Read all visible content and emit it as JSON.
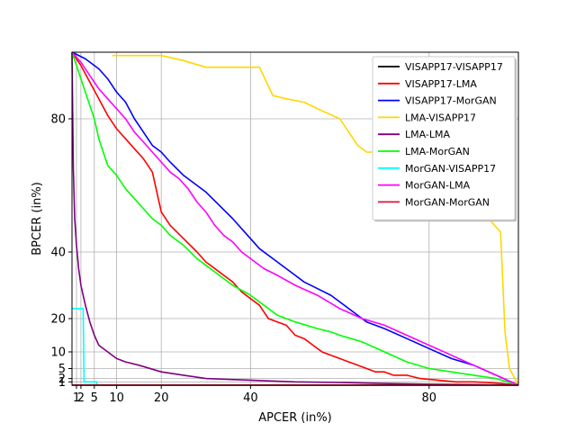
{
  "chart_data": {
    "type": "line",
    "title": "",
    "xlabel": "APCER (in%)",
    "ylabel": "BPCER (in%)",
    "xlim": [
      0,
      100
    ],
    "ylim": [
      0,
      100
    ],
    "xticks": [
      1,
      2,
      5,
      10,
      20,
      40,
      80
    ],
    "yticks": [
      1,
      2,
      5,
      10,
      20,
      40,
      80
    ],
    "grid": true,
    "legend_position": "top-right",
    "series": [
      {
        "name": "VISAPP17-VISAPP17",
        "color": "#000000",
        "x": [
          0,
          100
        ],
        "y": [
          0,
          0
        ]
      },
      {
        "name": "VISAPP17-LMA",
        "color": "#ff0000",
        "x": [
          0,
          2,
          4,
          6,
          8,
          10,
          12,
          14,
          16,
          18,
          20,
          22,
          25,
          28,
          30,
          33,
          36,
          38,
          40,
          42,
          44,
          46,
          48,
          50,
          52,
          54,
          56,
          58,
          60,
          62,
          64,
          66,
          68,
          70,
          72,
          75,
          78,
          82,
          86,
          90,
          93,
          96,
          98,
          100
        ],
        "y": [
          100,
          96,
          91,
          86,
          81,
          77,
          74,
          71,
          68,
          64,
          52,
          48,
          44,
          40,
          37,
          34,
          31,
          28,
          26,
          24,
          20,
          19,
          18,
          15,
          14,
          12,
          10,
          9,
          8,
          7,
          6,
          5,
          4,
          4,
          3,
          3,
          2,
          1.5,
          1,
          1,
          0.8,
          0.5,
          0.3,
          0
        ]
      },
      {
        "name": "VISAPP17-MorGAN",
        "color": "#0000ff",
        "x": [
          0,
          3,
          6,
          8,
          10,
          12,
          14,
          16,
          18,
          20,
          22,
          25,
          28,
          30,
          33,
          36,
          40,
          42,
          45,
          48,
          50,
          52,
          55,
          58,
          60,
          63,
          66,
          70,
          75,
          80,
          85,
          90,
          95,
          100
        ],
        "y": [
          100,
          98,
          95,
          92,
          88,
          85,
          80,
          76,
          72,
          70,
          67,
          63,
          60,
          58,
          54,
          50,
          44,
          41,
          38,
          35,
          33,
          31,
          29,
          27,
          25,
          22,
          19,
          17,
          14,
          11,
          8,
          6,
          3,
          0
        ]
      },
      {
        "name": "LMA-VISAPP17",
        "color": "#ffd700",
        "x": [
          9,
          20,
          25,
          30,
          42,
          45,
          48,
          52,
          55,
          60,
          62,
          64,
          66,
          70,
          72,
          80,
          85,
          90,
          94,
          96,
          97,
          98,
          100
        ],
        "y": [
          99,
          99,
          97.5,
          95.5,
          95.5,
          87,
          86,
          85,
          83,
          80,
          76,
          72,
          70,
          70,
          70,
          70,
          70,
          70,
          49,
          46,
          16,
          5,
          0
        ]
      },
      {
        "name": "LMA-LMA",
        "color": "#800080",
        "x": [
          0,
          0.3,
          0.6,
          1,
          1.5,
          2,
          3,
          4,
          5,
          6,
          8,
          10,
          12,
          15,
          20,
          25,
          30,
          40,
          50,
          60,
          70,
          80,
          90,
          100
        ],
        "y": [
          100,
          65,
          50,
          42,
          35,
          30,
          24,
          19,
          15,
          12,
          10,
          8,
          7,
          6,
          4,
          3,
          2,
          1.5,
          1,
          0.8,
          0.5,
          0.3,
          0.2,
          0
        ]
      },
      {
        "name": "LMA-MorGAN",
        "color": "#00ff00",
        "x": [
          0,
          1,
          2,
          3,
          4,
          5,
          6,
          7,
          8,
          10,
          12,
          14,
          16,
          18,
          20,
          22,
          25,
          28,
          30,
          33,
          36,
          40,
          43,
          46,
          50,
          55,
          58,
          60,
          65,
          70,
          75,
          80,
          85,
          90,
          95,
          100
        ],
        "y": [
          100,
          96,
          92,
          88,
          84,
          80,
          74,
          70,
          66,
          63,
          59,
          56,
          53,
          50,
          48,
          45,
          42,
          38,
          36,
          33,
          30,
          27,
          24,
          21,
          19,
          17,
          16,
          15,
          13,
          10,
          7,
          5,
          4,
          3,
          2,
          0
        ]
      },
      {
        "name": "MorGAN-VISAPP17",
        "color": "#00ffff",
        "x": [
          0,
          2.5,
          2.7,
          5.5,
          5.6
        ],
        "y": [
          23,
          23,
          1,
          1,
          0
        ]
      },
      {
        "name": "MorGAN-LMA",
        "color": "#ff00ff",
        "x": [
          0,
          2,
          4,
          6,
          8,
          10,
          12,
          14,
          16,
          18,
          20,
          22,
          24,
          26,
          28,
          30,
          32,
          34,
          36,
          38,
          40,
          43,
          46,
          50,
          55,
          60,
          65,
          70,
          75,
          80,
          85,
          90,
          95,
          100
        ],
        "y": [
          100,
          97,
          93,
          89,
          86,
          83,
          80,
          76,
          73,
          70,
          67,
          64,
          62,
          59,
          55,
          52,
          48,
          45,
          43,
          40,
          38,
          35,
          33,
          30,
          27,
          23,
          20,
          18,
          15,
          12,
          9,
          6,
          3,
          0
        ]
      },
      {
        "name": "MorGAN-MorGAN",
        "color": "#dc143c",
        "x": [
          0,
          100
        ],
        "y": [
          0.05,
          0.05
        ]
      }
    ]
  }
}
